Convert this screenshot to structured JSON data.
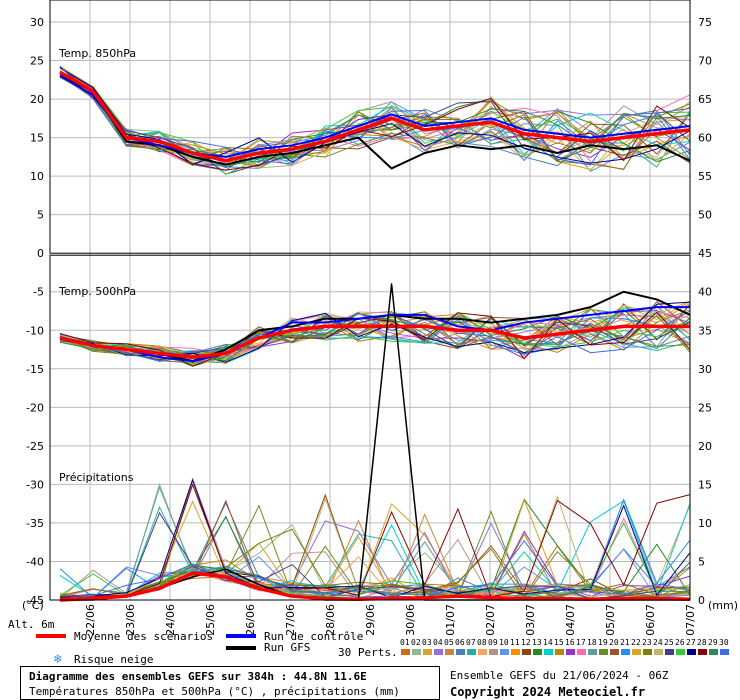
{
  "chart_data": {
    "type": "line",
    "title": "Diagramme des ensembles GEFS sur 384h : 44.8N 11.6E",
    "subtitle": "Températures 850hPa et 500hPa (°C) , précipitations (mm)",
    "x": [
      "22/06",
      "23/06",
      "24/06",
      "25/06",
      "26/06",
      "27/06",
      "28/06",
      "29/06",
      "30/06",
      "01/07",
      "02/07",
      "03/07",
      "04/07",
      "05/07",
      "06/07",
      "07/07"
    ],
    "left_axis": {
      "unit": "(°C)",
      "ticks": [
        "30",
        "25",
        "20",
        "15",
        "10",
        "5",
        "0",
        "-5",
        "-10",
        "-15",
        "-20",
        "-25",
        "-30",
        "-35",
        "-40",
        "-45"
      ]
    },
    "right_axis": {
      "unit": "(mm)",
      "ticks": [
        "75",
        "70",
        "65",
        "60",
        "55",
        "50",
        "45",
        "40",
        "35",
        "30",
        "25",
        "20",
        "15",
        "10",
        "5",
        "0"
      ]
    },
    "panels": {
      "t850": {
        "label": "Temp. 850hPa",
        "mean": [
          23.5,
          21,
          15,
          14.5,
          13,
          12,
          13,
          13.5,
          14.5,
          16,
          17.5,
          16,
          16.5,
          17,
          15.5,
          15,
          14.5,
          15,
          15.5,
          16
        ],
        "control": [
          23,
          20.5,
          15,
          14,
          13,
          12.5,
          13.5,
          14,
          15,
          16.5,
          18,
          16.5,
          17,
          17.5,
          16,
          15.5,
          15,
          15.5,
          16,
          16.5
        ],
        "gfs": [
          23,
          21,
          14.5,
          14,
          12.5,
          11.5,
          12.5,
          13,
          14,
          15,
          11,
          13,
          14,
          13.5,
          14,
          13,
          14,
          13.5,
          14,
          12
        ]
      },
      "t500": {
        "label": "Temp. 500hPa",
        "mean": [
          -11,
          -12,
          -12.5,
          -13,
          -13.5,
          -13,
          -11,
          -10,
          -9.5,
          -9.5,
          -9.5,
          -9.5,
          -10,
          -10,
          -11,
          -10.5,
          -10,
          -9.5,
          -9.5,
          -9.5
        ],
        "control": [
          -11,
          -12,
          -12.5,
          -13.5,
          -14,
          -13,
          -11,
          -9,
          -9,
          -8.5,
          -8,
          -8,
          -9.5,
          -10,
          -9,
          -8.5,
          -8,
          -7.5,
          -7,
          -7
        ],
        "gfs": [
          -11,
          -12,
          -12.5,
          -13,
          -14,
          -12.5,
          -10,
          -9.5,
          -8.5,
          -8.5,
          -8,
          -8.5,
          -8.5,
          -9,
          -8.5,
          -8,
          -7,
          -5,
          -6,
          -8
        ]
      },
      "precip": {
        "label": "Précipitations",
        "mean": [
          0,
          0.2,
          0.5,
          1.5,
          3.5,
          3,
          1.5,
          0.5,
          0.2,
          0.1,
          0.2,
          0.3,
          0.5,
          0.3,
          0.2,
          0.2,
          0.1,
          0.2,
          0.2,
          0.1
        ],
        "gfs": [
          0,
          0,
          0.5,
          1.5,
          3,
          4,
          2,
          0.5,
          0,
          0,
          41,
          0,
          0,
          0,
          0,
          0,
          0,
          0,
          0,
          0
        ]
      }
    },
    "ylim_left": [
      -45,
      30
    ],
    "ylim_right": [
      0,
      75
    ],
    "grid": true,
    "colors": {
      "mean": "#ff0000",
      "control": "#0000ff",
      "gfs": "#000000"
    }
  },
  "footer": {
    "alt": "Alt. 6m",
    "legend": {
      "mean": "Moyenne des scénarios",
      "control": "Run de contrôle",
      "gfs": "Run GFS",
      "snow": "Risque neige"
    },
    "perts_label": "30 Perts.",
    "perts": [
      "01",
      "02",
      "03",
      "04",
      "05",
      "06",
      "07",
      "08",
      "09",
      "10",
      "11",
      "12",
      "13",
      "14",
      "15",
      "16",
      "17",
      "18",
      "19",
      "20",
      "21",
      "22",
      "23",
      "24",
      "25",
      "26",
      "27",
      "28",
      "29",
      "30"
    ],
    "pert_colors": [
      "#d2691e",
      "#8fbc8f",
      "#daa520",
      "#9370db",
      "#cd853f",
      "#4682b4",
      "#20b2aa",
      "#f4a460",
      "#bc8f8f",
      "#6495ed",
      "#ff8c00",
      "#8b4513",
      "#228b22",
      "#00ced1",
      "#b8860b",
      "#9932cc",
      "#ff69b4",
      "#5f9ea0",
      "#6b8e23",
      "#a0522d",
      "#1e90ff",
      "#daa520",
      "#808000",
      "#bdb76b",
      "#483d8b",
      "#32cd32",
      "#00008b",
      "#8b0000",
      "#2e8b57",
      "#4169e1"
    ],
    "title_box": {
      "line1": "Diagramme des ensembles GEFS sur 384h : 44.8N 11.6E",
      "line2": "Températures 850hPa et 500hPa (°C) , précipitations (mm)"
    },
    "run_info": "Ensemble GEFS du 21/06/2024 - 06Z",
    "copyright": "Copyright 2024 Meteociel.fr"
  }
}
